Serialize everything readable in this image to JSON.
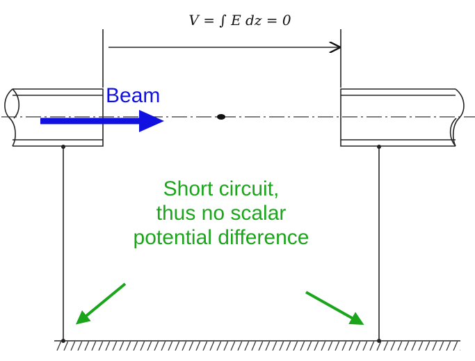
{
  "equation": "V = ∫ E dz = 0",
  "beam_label": "Beam",
  "annotation": {
    "lines": [
      "Short circuit,",
      "thus no scalar",
      "potential difference"
    ]
  }
}
